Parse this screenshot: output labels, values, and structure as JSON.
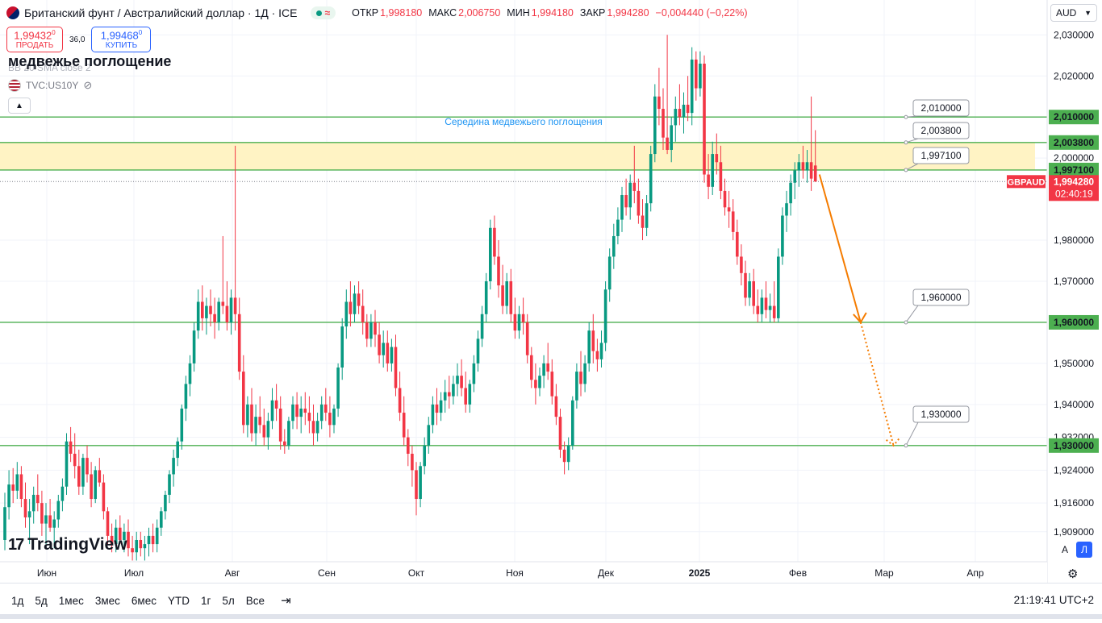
{
  "header": {
    "title": "Британский фунт / Австралийский доллар · 1Д · ICE",
    "market_icon": "circle-dot-icon",
    "wave_icon": "wave-icon",
    "ohlc": {
      "open_label": "ОТКР",
      "open": "1,998180",
      "high_label": "МАКС",
      "high": "2,006750",
      "low_label": "МИН",
      "low": "1,994180",
      "close_label": "ЗАКР",
      "close": "1,994280",
      "change": "−0,004440 (−0,22%)"
    }
  },
  "trade": {
    "sell_price": "1,99432",
    "sell_sup": "0",
    "sell_label": "ПРОДАТЬ",
    "spread": "36,0",
    "buy_price": "1,99468",
    "buy_sup": "0",
    "buy_label": "КУПИТЬ"
  },
  "annotation_title": "медвежье поглощение",
  "indicator_ghost": "BB 20 SMA close 2",
  "indicator2": "TVC:US10Y",
  "currency_select": "AUD",
  "logo_text": "TradingView",
  "chart_data": {
    "type": "candlestick",
    "symbol": "GBPAUD",
    "title": "Британский фунт / Австралийский доллар · 1Д · ICE",
    "x_tick_labels": [
      "Июн",
      "Июл",
      "Авг",
      "Сен",
      "Окт",
      "Ноя",
      "Дек",
      "2025",
      "Фев",
      "Мар",
      "Апр"
    ],
    "y_ticks": [
      {
        "v": 2.03,
        "label": "2,030000"
      },
      {
        "v": 2.02,
        "label": "2,020000"
      },
      {
        "v": 2.0,
        "label": "2,000000"
      },
      {
        "v": 1.98,
        "label": "1,980000"
      },
      {
        "v": 1.97,
        "label": "1,970000"
      },
      {
        "v": 1.95,
        "label": "1,950000"
      },
      {
        "v": 1.94,
        "label": "1,940000"
      },
      {
        "v": 1.932,
        "label": "1,932000"
      },
      {
        "v": 1.924,
        "label": "1,924000"
      },
      {
        "v": 1.916,
        "label": "1,916000"
      },
      {
        "v": 1.909,
        "label": "1,909000"
      }
    ],
    "ylim": [
      1.9017,
      2.0385
    ],
    "last_price": 1.99428,
    "last_price_label": "1,994280",
    "countdown": "02:40:19",
    "horizontal_levels": [
      {
        "v": 2.01,
        "label": "2,010000",
        "callout": "2,010000"
      },
      {
        "v": 2.0038,
        "label": "2,003800",
        "callout": "2,003800"
      },
      {
        "v": 1.9971,
        "label": "1,997100",
        "callout": "1,997100"
      },
      {
        "v": 1.96,
        "label": "1,960000",
        "callout": "1,960000"
      },
      {
        "v": 1.93,
        "label": "1,930000",
        "callout": "1,930000"
      }
    ],
    "zone": {
      "from": 1.9971,
      "to": 2.0038,
      "color": "#fff3c4"
    },
    "zone_label": "Середина медвежьего поглощения",
    "projection": {
      "from": {
        "x_day": 198,
        "y": 1.996
      },
      "mid": {
        "x_day": 208,
        "y": 1.96
      },
      "to": {
        "x_day": 216,
        "y": 1.93
      }
    },
    "colors": {
      "up": "#089981",
      "down": "#f23645",
      "level": "#4caf50",
      "zone": "#fff3c4",
      "arrow": "#f57c00",
      "price_label": "#f23645",
      "zone_text": "#2196f3"
    },
    "candles": [
      [
        1.907,
        1.9185,
        1.9045,
        1.915
      ],
      [
        1.915,
        1.924,
        1.912,
        1.9205
      ],
      [
        1.9205,
        1.9245,
        1.916,
        1.919
      ],
      [
        1.919,
        1.926,
        1.917,
        1.923
      ],
      [
        1.923,
        1.925,
        1.915,
        1.917
      ],
      [
        1.917,
        1.921,
        1.91,
        1.9125
      ],
      [
        1.9125,
        1.917,
        1.906,
        1.914
      ],
      [
        1.914,
        1.92,
        1.911,
        1.918
      ],
      [
        1.918,
        1.923,
        1.914,
        1.916
      ],
      [
        1.916,
        1.919,
        1.908,
        1.911
      ],
      [
        1.911,
        1.916,
        1.906,
        1.913
      ],
      [
        1.913,
        1.917,
        1.909,
        1.91
      ],
      [
        1.91,
        1.914,
        1.905,
        1.912
      ],
      [
        1.912,
        1.918,
        1.91,
        1.9165
      ],
      [
        1.9165,
        1.922,
        1.914,
        1.92
      ],
      [
        1.92,
        1.933,
        1.918,
        1.931
      ],
      [
        1.931,
        1.9345,
        1.926,
        1.928
      ],
      [
        1.928,
        1.933,
        1.922,
        1.925
      ],
      [
        1.925,
        1.929,
        1.918,
        1.92
      ],
      [
        1.92,
        1.928,
        1.918,
        1.927
      ],
      [
        1.927,
        1.93,
        1.921,
        1.923
      ],
      [
        1.923,
        1.926,
        1.915,
        1.917
      ],
      [
        1.917,
        1.925,
        1.916,
        1.924
      ],
      [
        1.924,
        1.927,
        1.92,
        1.921
      ],
      [
        1.921,
        1.923,
        1.912,
        1.914
      ],
      [
        1.914,
        1.915,
        1.906,
        1.908
      ],
      [
        1.908,
        1.911,
        1.904,
        1.906
      ],
      [
        1.906,
        1.912,
        1.904,
        1.91
      ],
      [
        1.91,
        1.913,
        1.906,
        1.907
      ],
      [
        1.907,
        1.911,
        1.904,
        1.909
      ],
      [
        1.909,
        1.912,
        1.903,
        1.905
      ],
      [
        1.905,
        1.908,
        1.902,
        1.904
      ],
      [
        1.904,
        1.909,
        1.902,
        1.907
      ],
      [
        1.907,
        1.909,
        1.903,
        1.905
      ],
      [
        1.905,
        1.908,
        1.902,
        1.906
      ],
      [
        1.906,
        1.91,
        1.903,
        1.908
      ],
      [
        1.908,
        1.911,
        1.904,
        1.906
      ],
      [
        1.906,
        1.912,
        1.904,
        1.91
      ],
      [
        1.91,
        1.915,
        1.908,
        1.914
      ],
      [
        1.914,
        1.919,
        1.912,
        1.918
      ],
      [
        1.918,
        1.924,
        1.916,
        1.923
      ],
      [
        1.923,
        1.929,
        1.92,
        1.927
      ],
      [
        1.927,
        1.932,
        1.925,
        1.931
      ],
      [
        1.931,
        1.94,
        1.929,
        1.939
      ],
      [
        1.939,
        1.947,
        1.936,
        1.945
      ],
      [
        1.945,
        1.952,
        1.942,
        1.95
      ],
      [
        1.95,
        1.96,
        1.948,
        1.958
      ],
      [
        1.958,
        1.968,
        1.956,
        1.965
      ],
      [
        1.965,
        1.969,
        1.958,
        1.961
      ],
      [
        1.961,
        1.966,
        1.957,
        1.964
      ],
      [
        1.964,
        1.968,
        1.959,
        1.962
      ],
      [
        1.962,
        1.966,
        1.956,
        1.96
      ],
      [
        1.96,
        1.966,
        1.958,
        1.965
      ],
      [
        1.965,
        1.981,
        1.962,
        1.964
      ],
      [
        1.964,
        1.97,
        1.958,
        1.96
      ],
      [
        1.96,
        1.968,
        1.957,
        1.966
      ],
      [
        1.966,
        2.003,
        1.958,
        1.962
      ],
      [
        1.962,
        1.966,
        1.946,
        1.948
      ],
      [
        1.948,
        1.952,
        1.933,
        1.935
      ],
      [
        1.935,
        1.942,
        1.932,
        1.94
      ],
      [
        1.94,
        1.944,
        1.931,
        1.933
      ],
      [
        1.933,
        1.94,
        1.93,
        1.937
      ],
      [
        1.937,
        1.942,
        1.933,
        1.935
      ],
      [
        1.935,
        1.939,
        1.93,
        1.932
      ],
      [
        1.932,
        1.938,
        1.929,
        1.936
      ],
      [
        1.936,
        1.944,
        1.934,
        1.941
      ],
      [
        1.941,
        1.945,
        1.936,
        1.939
      ],
      [
        1.939,
        1.942,
        1.929,
        1.931
      ],
      [
        1.931,
        1.934,
        1.928,
        1.93
      ],
      [
        1.93,
        1.937,
        1.929,
        1.936
      ],
      [
        1.936,
        1.942,
        1.934,
        1.94
      ],
      [
        1.94,
        1.943,
        1.934,
        1.937
      ],
      [
        1.937,
        1.942,
        1.933,
        1.939
      ],
      [
        1.939,
        1.943,
        1.935,
        1.938
      ],
      [
        1.938,
        1.942,
        1.933,
        1.936
      ],
      [
        1.936,
        1.94,
        1.93,
        1.933
      ],
      [
        1.933,
        1.938,
        1.931,
        1.936
      ],
      [
        1.936,
        1.942,
        1.934,
        1.94
      ],
      [
        1.94,
        1.944,
        1.936,
        1.938
      ],
      [
        1.938,
        1.942,
        1.932,
        1.935
      ],
      [
        1.935,
        1.94,
        1.933,
        1.939
      ],
      [
        1.939,
        1.95,
        1.937,
        1.949
      ],
      [
        1.949,
        1.961,
        1.946,
        1.959
      ],
      [
        1.959,
        1.968,
        1.956,
        1.965
      ],
      [
        1.965,
        1.97,
        1.959,
        1.962
      ],
      [
        1.962,
        1.969,
        1.96,
        1.967
      ],
      [
        1.967,
        1.97,
        1.962,
        1.964
      ],
      [
        1.964,
        1.968,
        1.957,
        1.96
      ],
      [
        1.96,
        1.962,
        1.954,
        1.956
      ],
      [
        1.956,
        1.962,
        1.954,
        1.96
      ],
      [
        1.96,
        1.963,
        1.954,
        1.957
      ],
      [
        1.957,
        1.96,
        1.95,
        1.952
      ],
      [
        1.952,
        1.958,
        1.949,
        1.955
      ],
      [
        1.955,
        1.958,
        1.948,
        1.95
      ],
      [
        1.95,
        1.956,
        1.948,
        1.954
      ],
      [
        1.954,
        1.957,
        1.942,
        1.944
      ],
      [
        1.944,
        1.948,
        1.936,
        1.938
      ],
      [
        1.938,
        1.942,
        1.93,
        1.932
      ],
      [
        1.932,
        1.934,
        1.925,
        1.928
      ],
      [
        1.928,
        1.93,
        1.92,
        1.924
      ],
      [
        1.924,
        1.926,
        1.913,
        1.917
      ],
      [
        1.917,
        1.926,
        1.915,
        1.925
      ],
      [
        1.925,
        1.932,
        1.923,
        1.93
      ],
      [
        1.93,
        1.937,
        1.928,
        1.935
      ],
      [
        1.935,
        1.942,
        1.933,
        1.94
      ],
      [
        1.94,
        1.944,
        1.935,
        1.938
      ],
      [
        1.938,
        1.943,
        1.936,
        1.941
      ],
      [
        1.941,
        1.946,
        1.938,
        1.943
      ],
      [
        1.943,
        1.947,
        1.939,
        1.942
      ],
      [
        1.942,
        1.947,
        1.94,
        1.945
      ],
      [
        1.945,
        1.95,
        1.942,
        1.947
      ],
      [
        1.947,
        1.951,
        1.942,
        1.944
      ],
      [
        1.944,
        1.948,
        1.938,
        1.94
      ],
      [
        1.94,
        1.946,
        1.938,
        1.945
      ],
      [
        1.945,
        1.952,
        1.943,
        1.95
      ],
      [
        1.95,
        1.958,
        1.948,
        1.956
      ],
      [
        1.956,
        1.964,
        1.954,
        1.962
      ],
      [
        1.962,
        1.972,
        1.96,
        1.97
      ],
      [
        1.97,
        1.985,
        1.968,
        1.983
      ],
      [
        1.983,
        1.986,
        1.974,
        1.976
      ],
      [
        1.976,
        1.98,
        1.966,
        1.969
      ],
      [
        1.969,
        1.974,
        1.962,
        1.964
      ],
      [
        1.964,
        1.972,
        1.962,
        1.97
      ],
      [
        1.97,
        1.973,
        1.96,
        1.962
      ],
      [
        1.962,
        1.966,
        1.956,
        1.958
      ],
      [
        1.958,
        1.964,
        1.956,
        1.962
      ],
      [
        1.962,
        1.966,
        1.957,
        1.96
      ],
      [
        1.96,
        1.962,
        1.95,
        1.952
      ],
      [
        1.952,
        1.954,
        1.944,
        1.946
      ],
      [
        1.946,
        1.95,
        1.94,
        1.944
      ],
      [
        1.944,
        1.949,
        1.942,
        1.947
      ],
      [
        1.947,
        1.952,
        1.944,
        1.95
      ],
      [
        1.95,
        1.955,
        1.946,
        1.948
      ],
      [
        1.948,
        1.951,
        1.94,
        1.942
      ],
      [
        1.942,
        1.945,
        1.935,
        1.937
      ],
      [
        1.937,
        1.939,
        1.927,
        1.929
      ],
      [
        1.929,
        1.931,
        1.923,
        1.926
      ],
      [
        1.926,
        1.932,
        1.924,
        1.93
      ],
      [
        1.93,
        1.942,
        1.929,
        1.941
      ],
      [
        1.941,
        1.95,
        1.939,
        1.948
      ],
      [
        1.948,
        1.953,
        1.942,
        1.945
      ],
      [
        1.945,
        1.952,
        1.943,
        1.95
      ],
      [
        1.95,
        1.96,
        1.948,
        1.958
      ],
      [
        1.958,
        1.962,
        1.95,
        1.953
      ],
      [
        1.953,
        1.956,
        1.948,
        1.951
      ],
      [
        1.951,
        1.958,
        1.949,
        1.955
      ],
      [
        1.955,
        1.97,
        1.953,
        1.968
      ],
      [
        1.968,
        1.978,
        1.965,
        1.976
      ],
      [
        1.976,
        1.984,
        1.973,
        1.981
      ],
      [
        1.981,
        1.988,
        1.979,
        1.985
      ],
      [
        1.985,
        1.993,
        1.982,
        1.991
      ],
      [
        1.991,
        1.995,
        1.986,
        1.988
      ],
      [
        1.988,
        1.996,
        1.985,
        1.994
      ],
      [
        1.994,
        2.003,
        1.989,
        1.992
      ],
      [
        1.992,
        1.995,
        1.984,
        1.986
      ],
      [
        1.986,
        1.99,
        1.98,
        1.983
      ],
      [
        1.983,
        1.991,
        1.981,
        1.989
      ],
      [
        1.989,
        2.003,
        1.987,
        2.001
      ],
      [
        2.001,
        2.018,
        1.999,
        2.015
      ],
      [
        2.015,
        2.022,
        2.008,
        2.012
      ],
      [
        2.012,
        2.017,
        2.002,
        2.005
      ],
      [
        2.005,
        2.03,
        2.001,
        2.002
      ],
      [
        2.002,
        2.01,
        1.999,
        2.008
      ],
      [
        2.008,
        2.015,
        2.004,
        2.012
      ],
      [
        2.012,
        2.018,
        2.008,
        2.01
      ],
      [
        2.01,
        2.016,
        2.006,
        2.013
      ],
      [
        2.013,
        2.02,
        2.009,
        2.011
      ],
      [
        2.011,
        2.027,
        2.008,
        2.024
      ],
      [
        2.024,
        2.026,
        2.014,
        2.017
      ],
      [
        2.017,
        2.026,
        2.015,
        2.023
      ],
      [
        2.023,
        2.025,
        1.994,
        1.996
      ],
      [
        1.996,
        2.001,
        1.99,
        1.993
      ],
      [
        1.993,
        2.004,
        1.991,
        2.001
      ],
      [
        2.001,
        2.006,
        1.996,
        1.999
      ],
      [
        1.999,
        2.003,
        1.99,
        1.992
      ],
      [
        1.992,
        1.995,
        1.986,
        1.988
      ],
      [
        1.988,
        1.992,
        1.983,
        1.987
      ],
      [
        1.987,
        1.99,
        1.98,
        1.982
      ],
      [
        1.982,
        1.985,
        1.974,
        1.976
      ],
      [
        1.976,
        1.979,
        1.969,
        1.972
      ],
      [
        1.972,
        1.975,
        1.964,
        1.966
      ],
      [
        1.966,
        1.972,
        1.964,
        1.97
      ],
      [
        1.97,
        1.973,
        1.962,
        1.964
      ],
      [
        1.964,
        1.968,
        1.96,
        1.962
      ],
      [
        1.962,
        1.968,
        1.96,
        1.966
      ],
      [
        1.966,
        1.97,
        1.961,
        1.963
      ],
      [
        1.963,
        1.967,
        1.96,
        1.964
      ],
      [
        1.964,
        1.97,
        1.96,
        1.961
      ],
      [
        1.961,
        1.978,
        1.96,
        1.976
      ],
      [
        1.976,
        1.988,
        1.974,
        1.986
      ],
      [
        1.986,
        1.992,
        1.982,
        1.989
      ],
      [
        1.989,
        1.996,
        1.986,
        1.994
      ],
      [
        1.994,
        1.999,
        1.99,
        1.997
      ],
      [
        1.997,
        2.001,
        1.993,
        1.999
      ],
      [
        1.999,
        2.003,
        1.995,
        1.997
      ],
      [
        1.997,
        2.002,
        1.994,
        1.999
      ],
      [
        1.999,
        2.015,
        1.992,
        1.995
      ],
      [
        1.9982,
        2.0068,
        1.9942,
        1.9943
      ]
    ]
  }
}
